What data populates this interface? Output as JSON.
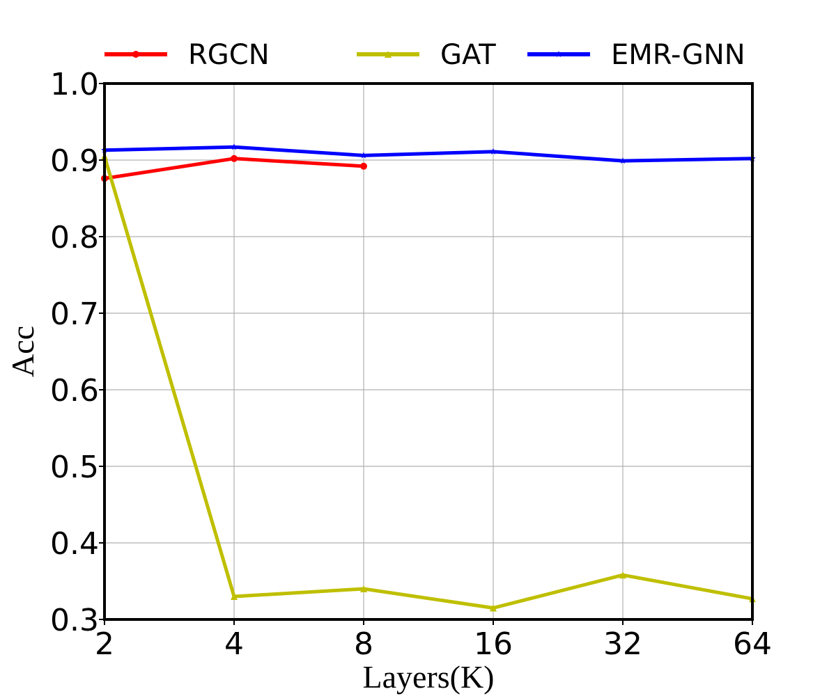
{
  "chart_data": {
    "type": "line",
    "title": "",
    "xlabel": "Layers(K)",
    "ylabel": "Acc",
    "categories": [
      "2",
      "4",
      "8",
      "16",
      "32",
      "64"
    ],
    "yticks": [
      "0.3",
      "0.4",
      "0.5",
      "0.6",
      "0.7",
      "0.8",
      "0.9",
      "1.0"
    ],
    "ylim": [
      0.3,
      1.0
    ],
    "grid": true,
    "legend_position": "top",
    "series": [
      {
        "name": "RGCN",
        "color": "#ff0000",
        "marker": "circle",
        "values": [
          0.876,
          0.902,
          0.892,
          null,
          null,
          null
        ]
      },
      {
        "name": "GAT",
        "color": "#bfbf00",
        "marker": "triangle",
        "values": [
          0.905,
          0.33,
          0.34,
          0.315,
          0.358,
          0.327
        ]
      },
      {
        "name": "EMR-GNN",
        "color": "#0000ff",
        "marker": "star",
        "values": [
          0.913,
          0.917,
          0.906,
          0.911,
          0.899,
          0.902
        ]
      }
    ]
  }
}
